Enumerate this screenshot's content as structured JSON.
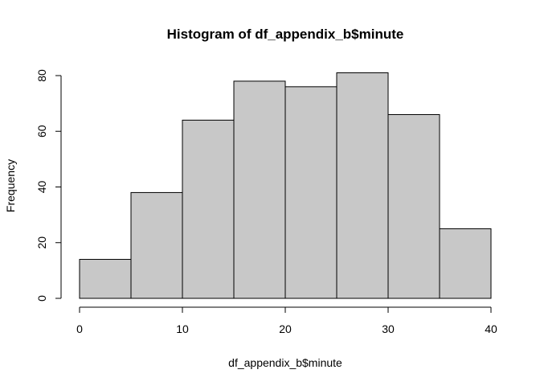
{
  "chart_data": {
    "type": "bar",
    "title": "Histogram of df_appendix_b$minute",
    "xlabel": "df_appendix_b$minute",
    "ylabel": "Frequency",
    "bins": [
      {
        "start": 0,
        "end": 5,
        "count": 14
      },
      {
        "start": 5,
        "end": 10,
        "count": 38
      },
      {
        "start": 10,
        "end": 15,
        "count": 64
      },
      {
        "start": 15,
        "end": 20,
        "count": 78
      },
      {
        "start": 20,
        "end": 25,
        "count": 76
      },
      {
        "start": 25,
        "end": 30,
        "count": 81
      },
      {
        "start": 30,
        "end": 35,
        "count": 66
      },
      {
        "start": 35,
        "end": 40,
        "count": 25
      }
    ],
    "xlim": [
      0,
      40
    ],
    "ylim": [
      0,
      80
    ],
    "x_ticks": [
      "0",
      "10",
      "20",
      "30",
      "40"
    ],
    "y_ticks": [
      "0",
      "20",
      "40",
      "60",
      "80"
    ],
    "bar_color": "#c8c8c8",
    "grid": false,
    "legend": "none"
  }
}
